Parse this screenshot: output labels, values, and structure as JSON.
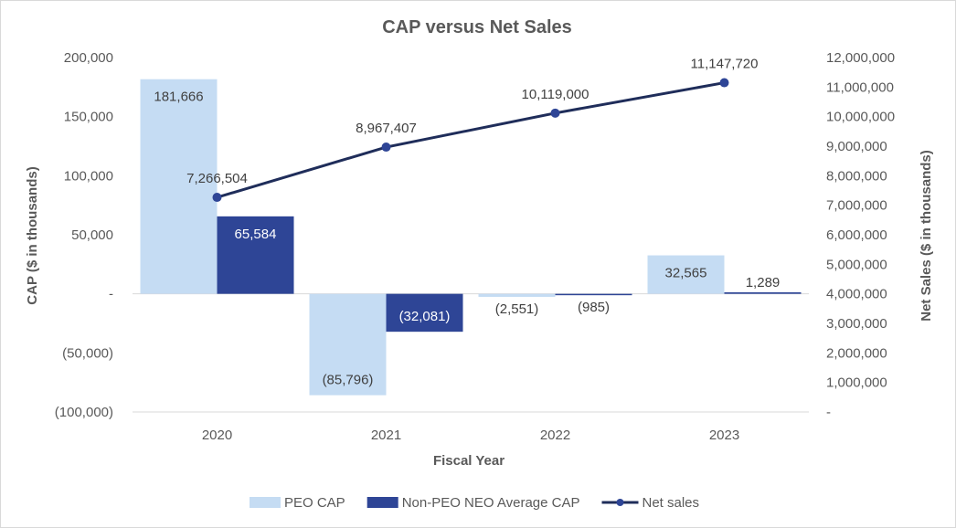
{
  "chart_data": {
    "type": "bar",
    "title": "CAP versus Net Sales",
    "xlabel": "Fiscal Year",
    "ylabel": "CAP ($ in thousands)",
    "y2label": "Net Sales ($ in thousands)",
    "categories": [
      "2020",
      "2021",
      "2022",
      "2023"
    ],
    "ylim": [
      -100000,
      200000
    ],
    "y2lim": [
      0,
      12000000
    ],
    "yticks": [
      -100000,
      -50000,
      0,
      50000,
      100000,
      150000,
      200000
    ],
    "yticklabels": [
      "(100,000)",
      "(50,000)",
      "-",
      "50,000",
      "100,000",
      "150,000",
      "200,000"
    ],
    "y2ticks": [
      0,
      1000000,
      2000000,
      3000000,
      4000000,
      5000000,
      6000000,
      7000000,
      8000000,
      9000000,
      10000000,
      11000000,
      12000000
    ],
    "y2ticklabels": [
      "-",
      "1,000,000",
      "2,000,000",
      "3,000,000",
      "4,000,000",
      "5,000,000",
      "6,000,000",
      "7,000,000",
      "8,000,000",
      "9,000,000",
      "10,000,000",
      "11,000,000",
      "12,000,000"
    ],
    "series": [
      {
        "name": "PEO CAP",
        "kind": "bar",
        "axis": "left",
        "color": "#c5dcf3",
        "values": [
          181666,
          -85796,
          -2551,
          32565
        ],
        "labels": [
          "181,666",
          "(85,796)",
          "(2,551)",
          "32,565"
        ]
      },
      {
        "name": "Non-PEO NEO Average CAP",
        "kind": "bar",
        "axis": "left",
        "color": "#2e4596",
        "values": [
          65584,
          -32081,
          -985,
          1289
        ],
        "labels": [
          "65,584",
          "(32,081)",
          "(985)",
          "1,289"
        ]
      },
      {
        "name": "Net sales",
        "kind": "line",
        "axis": "right",
        "color": "#1f2d5a",
        "values": [
          7266504,
          8967407,
          10119000,
          11147720
        ],
        "labels": [
          "7,266,504",
          "8,967,407",
          "10,119,000",
          "11,147,720"
        ]
      }
    ],
    "legend": "bottom",
    "grid": false
  }
}
